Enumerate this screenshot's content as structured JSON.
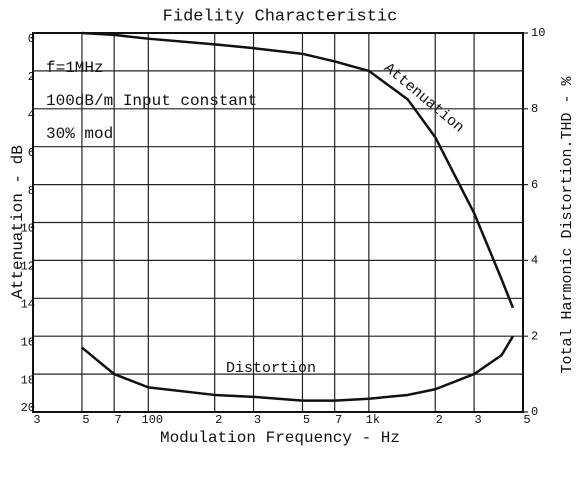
{
  "chart_data": {
    "type": "line",
    "title": "Fidelity Characteristic",
    "x_label": "Modulation Frequency - Hz",
    "y_label": "Attenuation - dB",
    "y2_label": "Total Harmonic Distortion.THD - %",
    "annotations": [
      "f=1MHz",
      "100dB/m Input constant",
      "30% mod"
    ],
    "x": [
      50,
      70,
      100,
      200,
      300,
      500,
      700,
      1000,
      1500,
      2000,
      3000,
      4000,
      4500
    ],
    "series": [
      {
        "name": "Attenuation",
        "color": "#111111",
        "values": [
          0,
          0.1,
          0.3,
          0.6,
          0.8,
          1.1,
          1.5,
          2.0,
          3.5,
          5.5,
          9.5,
          13,
          14.5
        ]
      },
      {
        "name": "Distortion",
        "color": "#111111",
        "axis": "y2",
        "values": [
          1.7,
          1.0,
          0.65,
          0.45,
          0.4,
          0.3,
          0.3,
          0.35,
          0.45,
          0.6,
          1.0,
          1.5,
          2.0
        ]
      }
    ],
    "x_log": true,
    "xlim": [
      30,
      5000
    ],
    "xticks": [
      {
        "value": 30,
        "label": "3"
      },
      {
        "value": 50,
        "label": "5"
      },
      {
        "value": 70,
        "label": "7"
      },
      100,
      {
        "value": 200,
        "label": "2"
      },
      {
        "value": 300,
        "label": "3"
      },
      {
        "value": 500,
        "label": "5"
      },
      {
        "value": 700,
        "label": "7"
      },
      {
        "value": 1000,
        "label": "1k"
      },
      {
        "value": 2000,
        "label": "2"
      },
      {
        "value": 3000,
        "label": "3"
      },
      {
        "value": 5000,
        "label": "5"
      }
    ],
    "ylim": [
      0,
      20
    ],
    "y_inverted": true,
    "yticks": [
      0,
      2,
      4,
      6,
      8,
      10,
      12,
      14,
      16,
      18,
      20
    ],
    "y2lim": [
      0,
      10
    ],
    "y2ticks": [
      0,
      2,
      4,
      6,
      8,
      10
    ],
    "grid": true
  }
}
